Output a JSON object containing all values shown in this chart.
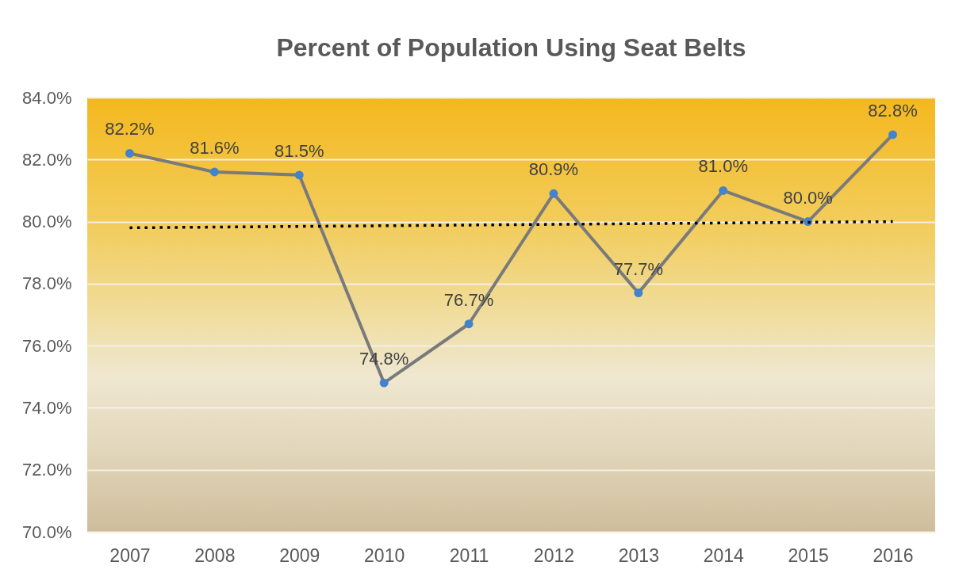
{
  "chart_data": {
    "type": "line",
    "title": "Percent of Population Using Seat Belts",
    "x": [
      2007,
      2008,
      2009,
      2010,
      2011,
      2012,
      2013,
      2014,
      2015,
      2016
    ],
    "series": [
      {
        "color": "#7a7a7a",
        "colors": [
          "#4383cc",
          "#4383cc",
          "#4383cc",
          "#4383cc",
          "#4383cc",
          "#4383cc",
          "#4383cc",
          "#4383cc",
          "#4383cc",
          "#4383cc"
        ],
        "values": [
          82.2,
          81.6,
          81.5,
          74.8,
          76.7,
          80.9,
          77.7,
          81.0,
          80.0,
          82.8
        ],
        "value_labels": [
          "82.2%",
          "81.6%",
          "81.5%",
          "74.8%",
          "76.7%",
          "80.9%",
          "77.7%",
          "81.0%",
          "80.0%",
          "82.8%"
        ]
      },
      {
        "type": "line",
        "color": "#000000",
        "x": [
          2007,
          2016
        ],
        "values": [
          79.8,
          80.0
        ],
        "marker": "none",
        "line_style": "dotted"
      }
    ],
    "xlim": [
      2006.5,
      2016.5
    ],
    "xticks": [
      2007,
      2008,
      2009,
      2010,
      2011,
      2012,
      2013,
      2014,
      2015,
      2016
    ],
    "ylim": [
      70,
      84
    ],
    "yticks": [
      {
        "value": 70,
        "label": "70.0%"
      },
      {
        "value": 72,
        "label": "72.0%"
      },
      {
        "value": 74,
        "label": "74.0%"
      },
      {
        "value": 76,
        "label": "76.0%"
      },
      {
        "value": 78,
        "label": "78.0%"
      },
      {
        "value": 80,
        "label": "80.0%"
      },
      {
        "value": 82,
        "label": "82.0%"
      },
      {
        "value": 84,
        "label": "84.0%"
      }
    ],
    "grid": "y",
    "marker": "circle",
    "line_style": "solid"
  }
}
